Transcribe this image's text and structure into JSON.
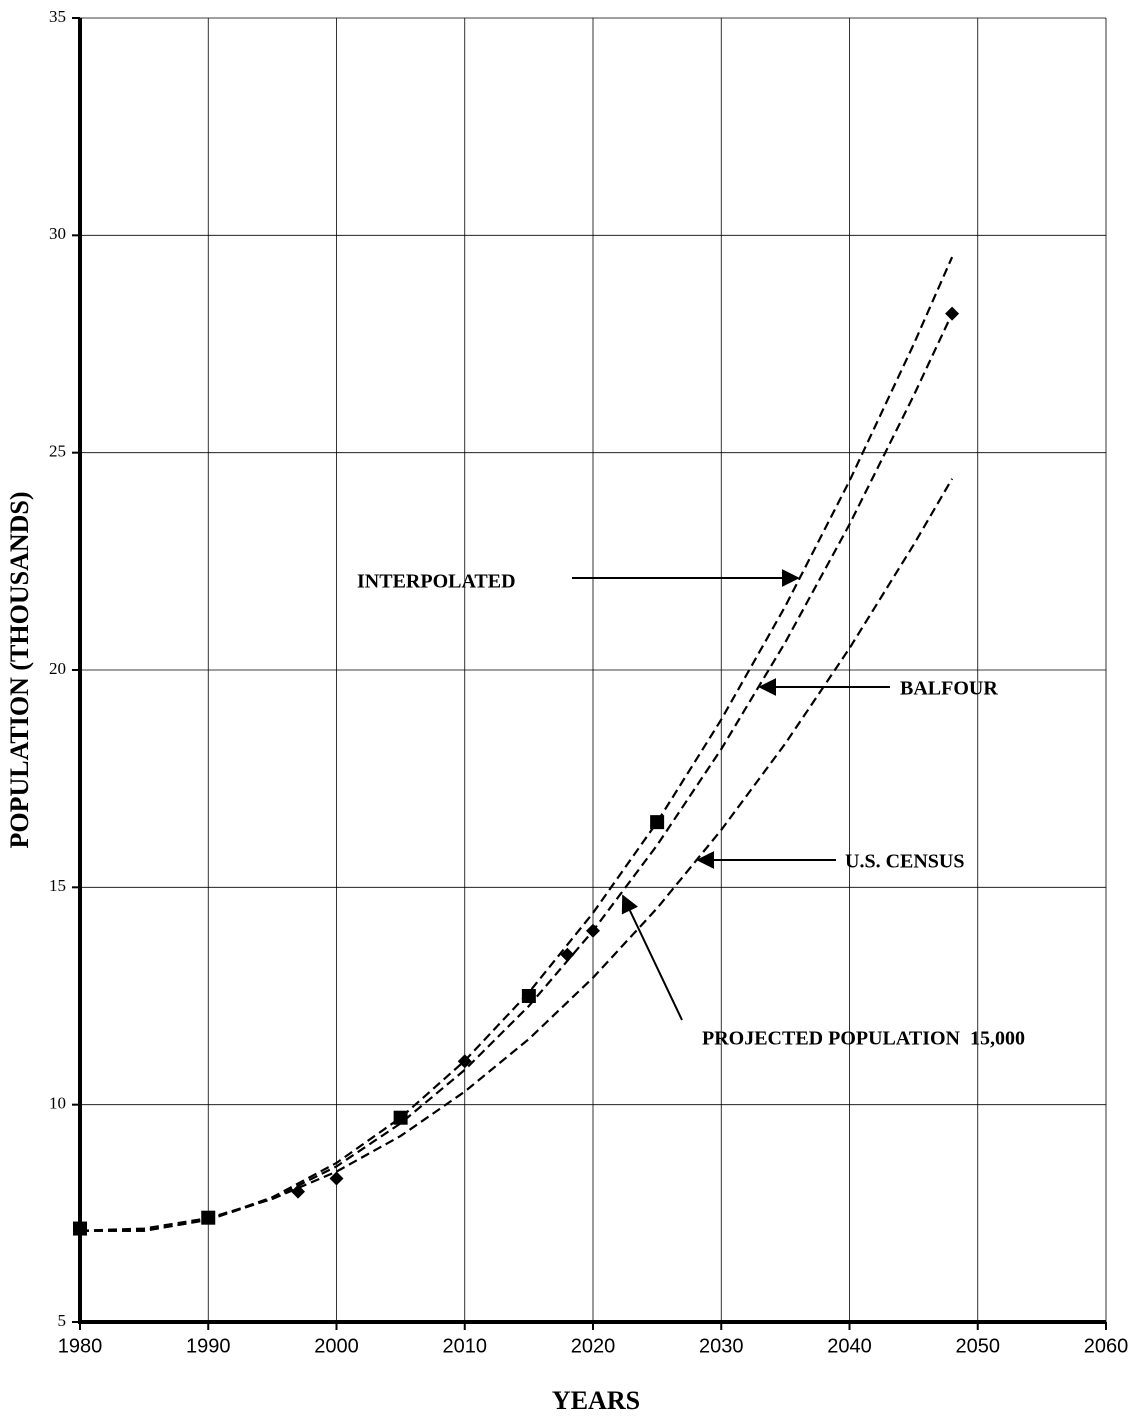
{
  "chart_data": {
    "type": "line",
    "xlabel": "YEARS",
    "ylabel": "POPULATION (THOUSANDS)",
    "xlim": [
      1980,
      2060
    ],
    "ylim": [
      5,
      35
    ],
    "xticks": [
      1980,
      1990,
      2000,
      2010,
      2020,
      2030,
      2040,
      2050,
      2060
    ],
    "yticks": [
      5,
      10,
      15,
      20,
      25,
      30,
      35
    ],
    "grid": true,
    "series": [
      {
        "kind": "line",
        "style": "dashed",
        "color": "#000000",
        "x": [
          1980,
          1985,
          1990,
          1995,
          2000,
          2005,
          2010,
          2015,
          2020,
          2025,
          2030,
          2035,
          2040,
          2045,
          2048
        ],
        "values": [
          7.1,
          7.1,
          7.35,
          7.87,
          8.66,
          9.7,
          11.01,
          12.58,
          14.41,
          16.5,
          18.86,
          21.47,
          24.35,
          27.49,
          29.5
        ]
      },
      {
        "kind": "line",
        "style": "dashed",
        "color": "#000000",
        "x": [
          1980,
          1985,
          1990,
          1995,
          2000,
          2005,
          2010,
          2015,
          2020,
          2025,
          2030,
          2035,
          2040,
          2045,
          2048
        ],
        "values": [
          7.1,
          7.1,
          7.35,
          7.84,
          8.58,
          9.57,
          10.8,
          12.27,
          14.0,
          15.97,
          18.18,
          20.64,
          23.35,
          26.31,
          28.2
        ]
      },
      {
        "kind": "line",
        "style": "dashed",
        "color": "#000000",
        "x": [
          1980,
          1985,
          1990,
          1995,
          2000,
          2005,
          2010,
          2015,
          2020,
          2025,
          2030,
          2035,
          2040,
          2045,
          2048
        ],
        "values": [
          7.1,
          7.15,
          7.39,
          7.83,
          8.46,
          9.28,
          10.3,
          11.51,
          12.92,
          14.52,
          16.32,
          18.31,
          20.5,
          22.88,
          24.4
        ]
      },
      {
        "kind": "scatter",
        "marker": "square",
        "color": "#000000",
        "x": [
          1980,
          1990,
          2005,
          2015,
          2025
        ],
        "values": [
          7.15,
          7.4,
          9.7,
          12.5,
          16.5
        ]
      },
      {
        "kind": "scatter",
        "marker": "diamond",
        "color": "#000000",
        "x": [
          1997,
          2000,
          2010,
          2018,
          2020,
          2048
        ],
        "values": [
          8.0,
          8.3,
          11.0,
          13.45,
          14.0,
          28.2
        ]
      }
    ],
    "annotations": [
      "INTERPOLATED",
      "BALFOUR",
      "U.S. CENSUS",
      "PROJECTED POPULATION  15,000"
    ]
  }
}
